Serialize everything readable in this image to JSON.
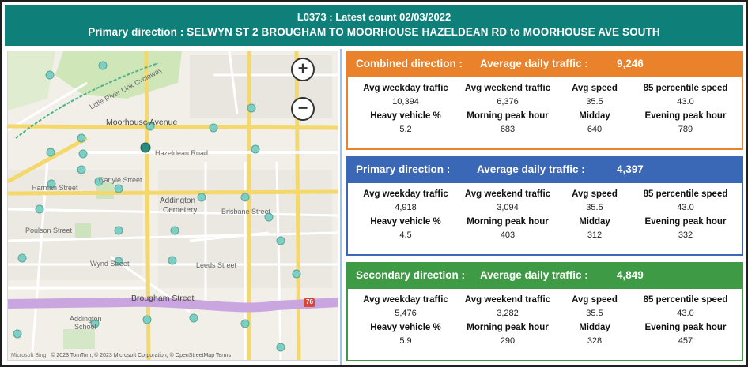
{
  "header": {
    "line1": "L0373 : Latest count 02/03/2022",
    "line2": "Primary direction : SELWYN ST 2 BROUGHAM TO MOORHOUSE HAZELDEAN RD to MOORHOUSE AVE SOUTH"
  },
  "map": {
    "zoom_in": "+",
    "zoom_out": "−",
    "labels": {
      "moorhouse": "Moorhouse Avenue",
      "hazeldean": "Hazeldean Road",
      "carlyle": "Carlyle Street",
      "addington_cemetery_1": "Addington",
      "addington_cemetery_2": "Cemetery",
      "brougham": "Brougham Street",
      "addington_school_1": "Addington",
      "addington_school_2": "School",
      "poulson": "Poulson Street",
      "wyndstreet": "Wynd Street",
      "harman": "Harman Street",
      "brisbane": "Brisbane Street",
      "leeds": "Leeds Street",
      "cycleway": "Little River Link Cycleway",
      "rd76": "76"
    },
    "attribution_brand": "Microsoft Bing",
    "attribution": "© 2023 TomTom, © 2023 Microsoft Corporation, © OpenStreetMap  Terms"
  },
  "labels": {
    "avg_weekday": "Avg weekday traffic",
    "avg_weekend": "Avg weekend traffic",
    "avg_speed": "Avg speed",
    "p85": "85 percentile speed",
    "heavy": "Heavy vehicle %",
    "morning": "Morning peak hour",
    "midday": "Midday",
    "evening": "Evening peak hour"
  },
  "combined": {
    "title": "Combined direction :",
    "adt_label": "Average daily traffic :",
    "adt": "9,246",
    "avg_weekday": "10,394",
    "avg_weekend": "6,376",
    "avg_speed": "35.5",
    "p85": "43.0",
    "heavy": "5.2",
    "morning": "683",
    "midday": "640",
    "evening": "789",
    "color": "#e9822a"
  },
  "primary": {
    "title": "Primary direction :",
    "adt_label": "Average daily traffic :",
    "adt": "4,397",
    "avg_weekday": "4,918",
    "avg_weekend": "3,094",
    "avg_speed": "35.5",
    "p85": "43.0",
    "heavy": "4.5",
    "morning": "403",
    "midday": "312",
    "evening": "332",
    "color": "#3a67b6"
  },
  "secondary": {
    "title": "Secondary direction :",
    "adt_label": "Average daily traffic :",
    "adt": "4,849",
    "avg_weekday": "5,476",
    "avg_weekend": "3,282",
    "avg_speed": "35.5",
    "p85": "43.0",
    "heavy": "5.9",
    "morning": "290",
    "midday": "328",
    "evening": "457",
    "color": "#3e9a45"
  }
}
